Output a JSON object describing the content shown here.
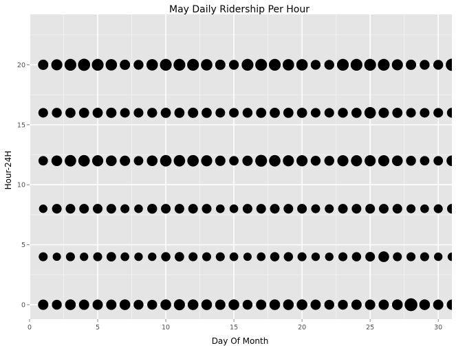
{
  "chart_data": {
    "type": "scatter",
    "title": "May Daily Ridership Per Hour",
    "xlabel": "Day Of Month",
    "ylabel": "Hour-24H",
    "xlim": [
      0,
      31
    ],
    "ylim": [
      -1.2,
      24.2
    ],
    "xticks": [
      0,
      5,
      10,
      15,
      20,
      25,
      30
    ],
    "yticks": [
      0,
      5,
      10,
      15,
      20
    ],
    "grid": true,
    "legend": "none",
    "marker_color": "#000000",
    "panel_color": "#e5e5e5",
    "grid_color": "#ffffff",
    "size_encoding": "relative ridership (0-1)",
    "days": [
      1,
      2,
      3,
      4,
      5,
      6,
      7,
      8,
      9,
      10,
      11,
      12,
      13,
      14,
      15,
      16,
      17,
      18,
      19,
      20,
      21,
      22,
      23,
      24,
      25,
      26,
      27,
      28,
      29,
      30,
      31
    ],
    "series": [
      {
        "hour": 0,
        "sizes": [
          0.5,
          0.45,
          0.55,
          0.5,
          0.5,
          0.5,
          0.55,
          0.45,
          0.45,
          0.55,
          0.6,
          0.55,
          0.55,
          0.5,
          0.55,
          0.45,
          0.5,
          0.55,
          0.55,
          0.55,
          0.5,
          0.45,
          0.45,
          0.5,
          0.5,
          0.5,
          0.55,
          0.85,
          0.55,
          0.5,
          0.5
        ]
      },
      {
        "hour": 4,
        "sizes": [
          0.35,
          0.28,
          0.35,
          0.3,
          0.35,
          0.4,
          0.32,
          0.3,
          0.3,
          0.38,
          0.4,
          0.35,
          0.35,
          0.35,
          0.32,
          0.28,
          0.32,
          0.38,
          0.38,
          0.35,
          0.3,
          0.3,
          0.35,
          0.38,
          0.42,
          0.55,
          0.35,
          0.35,
          0.35,
          0.3,
          0.3
        ]
      },
      {
        "hour": 8,
        "sizes": [
          0.3,
          0.42,
          0.42,
          0.42,
          0.42,
          0.42,
          0.35,
          0.32,
          0.45,
          0.42,
          0.42,
          0.42,
          0.42,
          0.32,
          0.32,
          0.42,
          0.42,
          0.42,
          0.42,
          0.42,
          0.35,
          0.35,
          0.42,
          0.42,
          0.42,
          0.42,
          0.42,
          0.35,
          0.32,
          0.35,
          0.42
        ]
      },
      {
        "hour": 12,
        "sizes": [
          0.4,
          0.55,
          0.65,
          0.65,
          0.6,
          0.55,
          0.5,
          0.4,
          0.55,
          0.65,
          0.65,
          0.65,
          0.6,
          0.5,
          0.4,
          0.5,
          0.7,
          0.65,
          0.6,
          0.6,
          0.45,
          0.45,
          0.6,
          0.6,
          0.6,
          0.6,
          0.55,
          0.45,
          0.4,
          0.4,
          0.55
        ]
      },
      {
        "hour": 16,
        "sizes": [
          0.42,
          0.45,
          0.48,
          0.48,
          0.48,
          0.5,
          0.42,
          0.42,
          0.45,
          0.48,
          0.48,
          0.5,
          0.48,
          0.42,
          0.42,
          0.45,
          0.48,
          0.48,
          0.48,
          0.48,
          0.42,
          0.42,
          0.45,
          0.48,
          0.65,
          0.5,
          0.48,
          0.42,
          0.42,
          0.42,
          0.45
        ]
      },
      {
        "hour": 20,
        "sizes": [
          0.5,
          0.6,
          0.7,
          0.75,
          0.7,
          0.65,
          0.5,
          0.45,
          0.65,
          0.7,
          0.7,
          0.7,
          0.65,
          0.5,
          0.45,
          0.7,
          0.7,
          0.7,
          0.65,
          0.65,
          0.45,
          0.45,
          0.7,
          0.7,
          0.7,
          0.7,
          0.6,
          0.5,
          0.45,
          0.45,
          0.75
        ]
      }
    ]
  }
}
